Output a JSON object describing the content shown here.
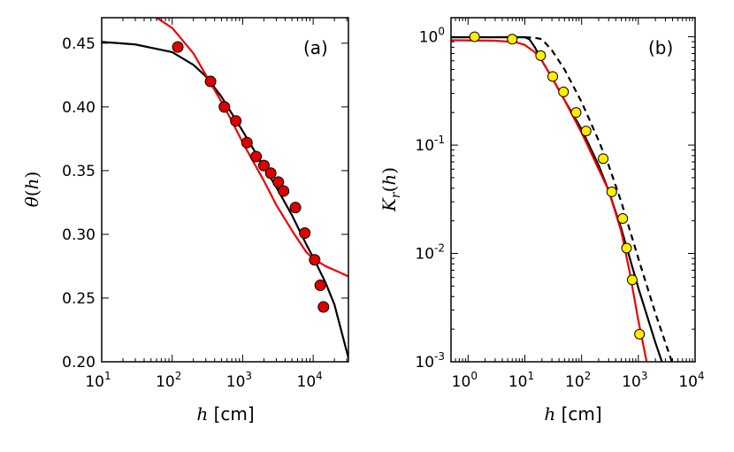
{
  "chart_data": [
    {
      "type": "scatter",
      "panel_label": "(a)",
      "xlabel": "h [cm]",
      "ylabel": "θ(h)",
      "xscale": "log",
      "xlim": [
        10,
        31623
      ],
      "ylim": [
        0.2,
        0.47
      ],
      "xticks": [
        10,
        100,
        1000,
        10000
      ],
      "xtick_labels": [
        {
          "base": "10",
          "exp": "1"
        },
        {
          "base": "10",
          "exp": "2"
        },
        {
          "base": "10",
          "exp": "3"
        },
        {
          "base": "10",
          "exp": "4"
        }
      ],
      "yticks": [
        0.2,
        0.25,
        0.3,
        0.35,
        0.4,
        0.45
      ],
      "ytick_labels": [
        "0.20",
        "0.25",
        "0.30",
        "0.35",
        "0.40",
        "0.45"
      ],
      "grid": false,
      "colors": {
        "points": "#dd0000",
        "black_curve": "#000000",
        "red_curve": "#ee0000"
      },
      "points": [
        {
          "x": 120,
          "y": 0.447
        },
        {
          "x": 350,
          "y": 0.42
        },
        {
          "x": 550,
          "y": 0.4
        },
        {
          "x": 800,
          "y": 0.389
        },
        {
          "x": 1150,
          "y": 0.372
        },
        {
          "x": 1550,
          "y": 0.361
        },
        {
          "x": 2000,
          "y": 0.354
        },
        {
          "x": 2500,
          "y": 0.348
        },
        {
          "x": 3200,
          "y": 0.341
        },
        {
          "x": 3800,
          "y": 0.334
        },
        {
          "x": 5600,
          "y": 0.321
        },
        {
          "x": 7600,
          "y": 0.301
        },
        {
          "x": 10500,
          "y": 0.28
        },
        {
          "x": 12600,
          "y": 0.26
        },
        {
          "x": 14000,
          "y": 0.243
        }
      ],
      "series": [
        {
          "color": "#000000",
          "points": [
            [
              10,
              0.451
            ],
            [
              30,
              0.449
            ],
            [
              100,
              0.443
            ],
            [
              200,
              0.433
            ],
            [
              300,
              0.424
            ],
            [
              500,
              0.408
            ],
            [
              1000,
              0.381
            ],
            [
              2000,
              0.353
            ],
            [
              3000,
              0.337
            ],
            [
              5000,
              0.315
            ],
            [
              8000,
              0.292
            ],
            [
              10000,
              0.282
            ],
            [
              15000,
              0.262
            ],
            [
              20000,
              0.245
            ],
            [
              31623,
              0.203
            ]
          ]
        },
        {
          "color": "#ee0000",
          "points": [
            [
              60,
              0.47
            ],
            [
              100,
              0.462
            ],
            [
              200,
              0.442
            ],
            [
              300,
              0.425
            ],
            [
              500,
              0.404
            ],
            [
              700,
              0.389
            ],
            [
              1000,
              0.372
            ],
            [
              2000,
              0.342
            ],
            [
              3000,
              0.323
            ],
            [
              5000,
              0.303
            ],
            [
              8000,
              0.286
            ],
            [
              10000,
              0.281
            ],
            [
              15000,
              0.275
            ],
            [
              20000,
              0.272
            ],
            [
              31623,
              0.267
            ]
          ]
        }
      ]
    },
    {
      "type": "scatter",
      "panel_label": "(b)",
      "xlabel": "h [cm]",
      "ylabel": "K_r(h)",
      "xscale": "log",
      "yscale": "log",
      "xlim": [
        0.5,
        10000
      ],
      "ylim": [
        0.001,
        1.5
      ],
      "xticks": [
        1,
        10,
        100,
        1000,
        10000
      ],
      "xtick_labels": [
        {
          "base": "10",
          "exp": "0"
        },
        {
          "base": "10",
          "exp": "1"
        },
        {
          "base": "10",
          "exp": "2"
        },
        {
          "base": "10",
          "exp": "3"
        },
        {
          "base": "10",
          "exp": "4"
        }
      ],
      "yticks": [
        0.001,
        0.01,
        0.1,
        1
      ],
      "ytick_labels": [
        {
          "base": "10",
          "exp": "-3"
        },
        {
          "base": "10",
          "exp": "-2"
        },
        {
          "base": "10",
          "exp": "-1"
        },
        {
          "base": "10",
          "exp": "0"
        }
      ],
      "grid": false,
      "colors": {
        "points": "#ffee00",
        "black_curve": "#000000",
        "red_curve": "#ee0000"
      },
      "points": [
        {
          "x": 1.3,
          "y": 1.0
        },
        {
          "x": 6,
          "y": 0.95
        },
        {
          "x": 19,
          "y": 0.67
        },
        {
          "x": 31,
          "y": 0.43
        },
        {
          "x": 48,
          "y": 0.31
        },
        {
          "x": 80,
          "y": 0.2
        },
        {
          "x": 120,
          "y": 0.135
        },
        {
          "x": 240,
          "y": 0.075
        },
        {
          "x": 340,
          "y": 0.037
        },
        {
          "x": 530,
          "y": 0.021
        },
        {
          "x": 620,
          "y": 0.0112
        },
        {
          "x": 780,
          "y": 0.0057
        },
        {
          "x": 1050,
          "y": 0.0018
        }
      ],
      "series": [
        {
          "style": "solid",
          "color": "#000000",
          "points": [
            [
              0.5,
              0.99
            ],
            [
              10,
              0.99
            ],
            [
              12,
              0.95
            ],
            [
              15,
              0.8
            ],
            [
              20,
              0.6
            ],
            [
              30,
              0.42
            ],
            [
              50,
              0.26
            ],
            [
              100,
              0.14
            ],
            [
              200,
              0.065
            ],
            [
              300,
              0.038
            ],
            [
              500,
              0.017
            ],
            [
              1000,
              0.0048
            ],
            [
              2000,
              0.0015
            ],
            [
              2600,
              0.001
            ]
          ]
        },
        {
          "style": "dashed",
          "color": "#000000",
          "points": [
            [
              10,
              0.99
            ],
            [
              15,
              0.98
            ],
            [
              20,
              0.95
            ],
            [
              30,
              0.75
            ],
            [
              50,
              0.5
            ],
            [
              100,
              0.25
            ],
            [
              200,
              0.11
            ],
            [
              300,
              0.065
            ],
            [
              500,
              0.03
            ],
            [
              1000,
              0.009
            ],
            [
              2000,
              0.0028
            ],
            [
              3900,
              0.001
            ]
          ]
        },
        {
          "style": "solid",
          "color": "#ee0000",
          "points": [
            [
              0.5,
              0.93
            ],
            [
              3,
              0.92
            ],
            [
              7,
              0.89
            ],
            [
              10,
              0.84
            ],
            [
              15,
              0.72
            ],
            [
              20,
              0.6
            ],
            [
              30,
              0.42
            ],
            [
              50,
              0.26
            ],
            [
              100,
              0.13
            ],
            [
              200,
              0.06
            ],
            [
              300,
              0.038
            ],
            [
              500,
              0.016
            ],
            [
              700,
              0.0068
            ],
            [
              1000,
              0.0024
            ],
            [
              1400,
              0.001
            ]
          ]
        }
      ]
    }
  ]
}
